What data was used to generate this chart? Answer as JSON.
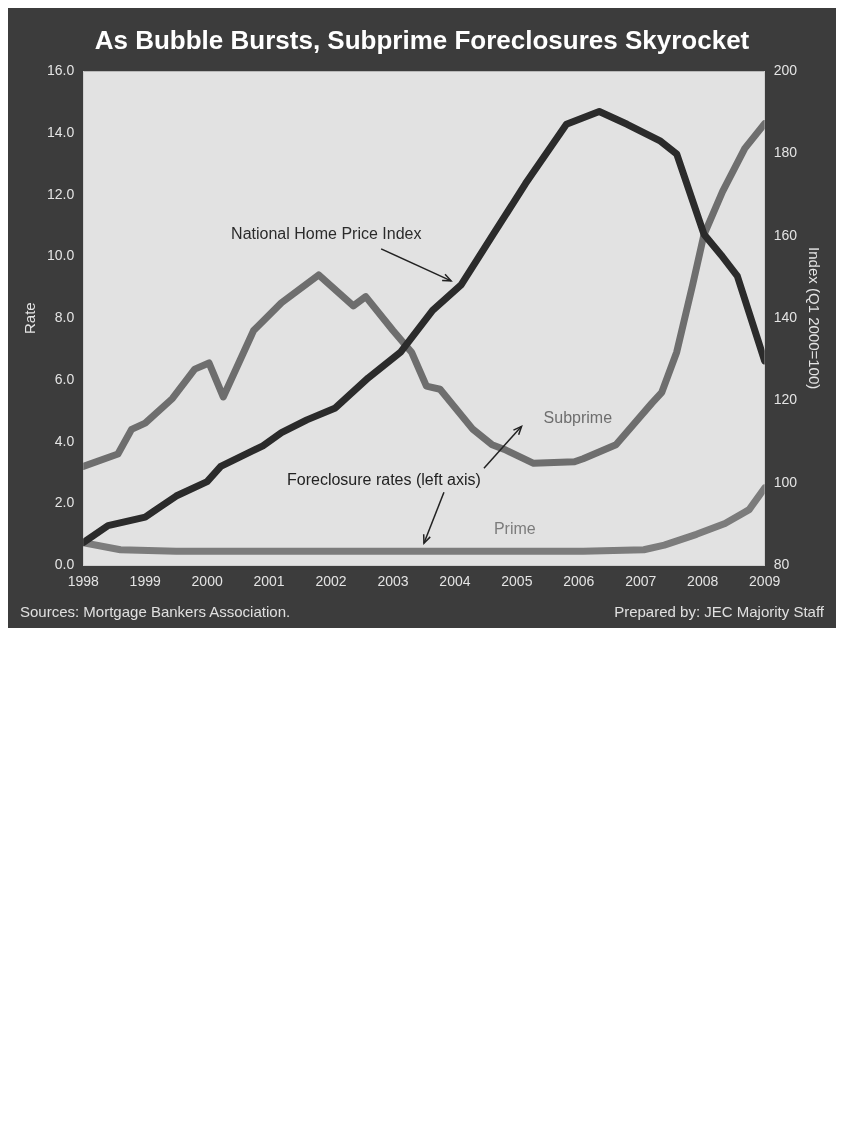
{
  "chart_data": {
    "type": "line",
    "title": "As Bubble Bursts, Subprime Foreclosures Skyrocket",
    "ylabel": "Rate",
    "y2label": "Index (Q1 2000=100)",
    "xlim": [
      1998,
      2009
    ],
    "xticks": [
      1998,
      1999,
      2000,
      2001,
      2002,
      2003,
      2004,
      2005,
      2006,
      2007,
      2008,
      2009
    ],
    "ylim": [
      0,
      16
    ],
    "yticks": [
      {
        "value": 0,
        "label": "0.0"
      },
      {
        "value": 2,
        "label": "2.0"
      },
      {
        "value": 4,
        "label": "4.0"
      },
      {
        "value": 6,
        "label": "6.0"
      },
      {
        "value": 8,
        "label": "8.0"
      },
      {
        "value": 10,
        "label": "10.0"
      },
      {
        "value": 12,
        "label": "12.0"
      },
      {
        "value": 14,
        "label": "14.0"
      },
      {
        "value": 16,
        "label": "16.0"
      }
    ],
    "y2lim": [
      80,
      200
    ],
    "y2ticks": [
      80,
      100,
      120,
      140,
      160,
      180,
      200
    ],
    "grid": false,
    "legend": false,
    "marker": "none",
    "line_style": "solid",
    "annotations": [
      "Foreclosure rates (left axis)",
      "Sources: Mortgage Bankers Association.",
      "Prepared by: JEC Majority Staff"
    ],
    "series": [
      {
        "name": "National Home Price Index",
        "color": "#2b2b2b",
        "axis": "y2",
        "x": [
          1998.0,
          1998.4,
          1999.0,
          1999.5,
          2000.0,
          2000.22,
          2000.9,
          2001.2,
          2001.61,
          2002.07,
          2002.6,
          2003.12,
          2003.64,
          2004.1,
          2004.62,
          2005.14,
          2005.8,
          2006.33,
          2006.78,
          2007.32,
          2007.58,
          2008.02,
          2008.3,
          2008.56,
          2009.0
        ],
        "values": [
          85.5,
          89.6,
          91.7,
          96.8,
          100.3,
          104,
          109,
          112.2,
          115.3,
          118.2,
          125.5,
          131.7,
          141.9,
          148.1,
          160.4,
          172.7,
          187.1,
          190.2,
          187.1,
          183,
          179.9,
          160.4,
          155.3,
          150.2,
          129.6
        ]
      },
      {
        "name": "Subprime",
        "color": "#6e6e6e",
        "x": [
          1998.0,
          1998.56,
          1998.78,
          1999.0,
          1999.44,
          1999.8,
          2000.03,
          2000.26,
          2000.75,
          2001.2,
          2001.8,
          2002.36,
          2002.56,
          2003.0,
          2003.3,
          2003.54,
          2003.76,
          2004.29,
          2004.6,
          2004.8,
          2005.27,
          2005.93,
          2006.07,
          2006.6,
          2007.18,
          2007.34,
          2007.58,
          2007.84,
          2008.02,
          2008.32,
          2008.68,
          2009.0
        ],
        "values": [
          3.2,
          3.6,
          4.4,
          4.6,
          5.4,
          6.35,
          6.55,
          5.45,
          7.6,
          8.5,
          9.4,
          8.4,
          8.7,
          7.6,
          6.9,
          5.8,
          5.7,
          4.4,
          3.9,
          3.75,
          3.3,
          3.35,
          3.45,
          3.9,
          5.25,
          5.6,
          6.9,
          9.1,
          10.7,
          12.1,
          13.5,
          14.3
        ]
      },
      {
        "name": "Prime",
        "color": "#7c7c7c",
        "x": [
          1998.0,
          1998.6,
          1999.5,
          2000.5,
          2001.5,
          2002.5,
          2003.5,
          2004.5,
          2005.5,
          2006.07,
          2007.05,
          2007.38,
          2007.9,
          2008.36,
          2008.75,
          2009.0
        ],
        "values": [
          0.73,
          0.5,
          0.45,
          0.45,
          0.45,
          0.45,
          0.45,
          0.45,
          0.45,
          0.45,
          0.5,
          0.65,
          1.0,
          1.35,
          1.8,
          2.5
        ]
      }
    ]
  }
}
